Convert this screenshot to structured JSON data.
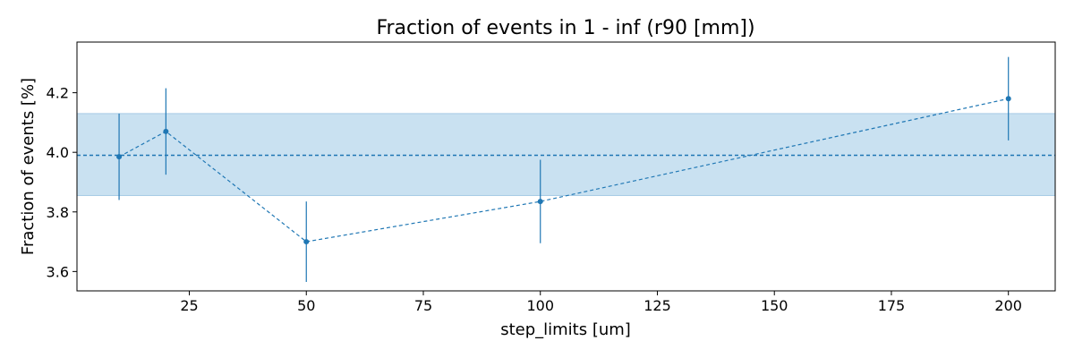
{
  "chart_data": {
    "type": "line",
    "title": "Fraction of events in 1 - inf (r90 [mm])",
    "xlabel": "step_limits [um]",
    "ylabel": "Fraction of events [%]",
    "xlim": [
      1,
      210
    ],
    "ylim": [
      3.535,
      4.37
    ],
    "x_ticks": [
      25,
      50,
      75,
      100,
      125,
      150,
      175,
      200
    ],
    "y_ticks": [
      3.6,
      3.8,
      4.0,
      4.2
    ],
    "grid": false,
    "series": [
      {
        "x": [
          10,
          20,
          50,
          100,
          200
        ],
        "y": [
          3.985,
          4.07,
          3.7,
          3.835,
          4.18
        ],
        "yerr": [
          0.145,
          0.145,
          0.135,
          0.14,
          0.14
        ]
      }
    ],
    "reference": {
      "value": 3.99,
      "band": [
        3.855,
        4.13
      ]
    },
    "colors": {
      "series": "#1f77b4",
      "band": "#c9e1f1",
      "band_edge": "#a6cbe6"
    }
  }
}
